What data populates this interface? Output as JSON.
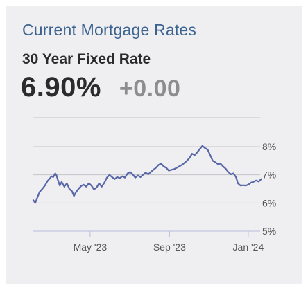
{
  "header": {
    "title": "Current Mortgage Rates",
    "subtitle": "30 Year Fixed Rate",
    "rate": "6.90%",
    "change": "+0.00"
  },
  "colors": {
    "title": "#3c6390",
    "line": "#5666a6",
    "grid": "#c4c4c8",
    "axis": "#b9bce0",
    "card_background": "#efeff1"
  },
  "chart_data": {
    "type": "line",
    "title": "",
    "xlabel": "",
    "ylabel": "",
    "ylim": [
      5,
      8
    ],
    "y_ticks": [
      8,
      7,
      6,
      5
    ],
    "y_tick_labels": [
      "8%",
      "7%",
      "6%",
      "5%"
    ],
    "y_axis_position": "right",
    "grid": true,
    "x_ticks": [
      "2023-05-01",
      "2023-09-01",
      "2024-01-01"
    ],
    "x_tick_labels": [
      "May '23",
      "Sep '23",
      "Jan '24"
    ],
    "series": [
      {
        "name": "",
        "points": [
          [
            "2023-02-02",
            6.1
          ],
          [
            "2023-02-05",
            6.0
          ],
          [
            "2023-02-08",
            6.18
          ],
          [
            "2023-02-12",
            6.4
          ],
          [
            "2023-02-16",
            6.5
          ],
          [
            "2023-02-20",
            6.62
          ],
          [
            "2023-02-24",
            6.78
          ],
          [
            "2023-02-28",
            6.88
          ],
          [
            "2023-03-02",
            6.95
          ],
          [
            "2023-03-05",
            6.92
          ],
          [
            "2023-03-08",
            7.05
          ],
          [
            "2023-03-10",
            6.98
          ],
          [
            "2023-03-12",
            6.82
          ],
          [
            "2023-03-15",
            6.62
          ],
          [
            "2023-03-18",
            6.75
          ],
          [
            "2023-03-22",
            6.58
          ],
          [
            "2023-03-26",
            6.7
          ],
          [
            "2023-03-30",
            6.5
          ],
          [
            "2023-04-03",
            6.42
          ],
          [
            "2023-04-06",
            6.25
          ],
          [
            "2023-04-09",
            6.38
          ],
          [
            "2023-04-13",
            6.5
          ],
          [
            "2023-04-17",
            6.6
          ],
          [
            "2023-04-21",
            6.65
          ],
          [
            "2023-04-25",
            6.58
          ],
          [
            "2023-04-29",
            6.7
          ],
          [
            "2023-05-03",
            6.62
          ],
          [
            "2023-05-07",
            6.48
          ],
          [
            "2023-05-11",
            6.55
          ],
          [
            "2023-05-15",
            6.7
          ],
          [
            "2023-05-19",
            6.58
          ],
          [
            "2023-05-23",
            6.72
          ],
          [
            "2023-05-27",
            6.9
          ],
          [
            "2023-05-31",
            7.0
          ],
          [
            "2023-06-04",
            6.92
          ],
          [
            "2023-06-08",
            6.85
          ],
          [
            "2023-06-12",
            6.92
          ],
          [
            "2023-06-16",
            6.88
          ],
          [
            "2023-06-20",
            6.95
          ],
          [
            "2023-06-24",
            6.9
          ],
          [
            "2023-06-28",
            7.05
          ],
          [
            "2023-07-02",
            7.1
          ],
          [
            "2023-07-06",
            7.02
          ],
          [
            "2023-07-10",
            6.9
          ],
          [
            "2023-07-14",
            6.98
          ],
          [
            "2023-07-18",
            6.92
          ],
          [
            "2023-07-22",
            7.0
          ],
          [
            "2023-07-26",
            7.08
          ],
          [
            "2023-07-30",
            7.02
          ],
          [
            "2023-08-03",
            7.1
          ],
          [
            "2023-08-07",
            7.18
          ],
          [
            "2023-08-11",
            7.25
          ],
          [
            "2023-08-15",
            7.35
          ],
          [
            "2023-08-19",
            7.4
          ],
          [
            "2023-08-23",
            7.3
          ],
          [
            "2023-08-27",
            7.25
          ],
          [
            "2023-08-31",
            7.15
          ],
          [
            "2023-09-04",
            7.18
          ],
          [
            "2023-09-08",
            7.2
          ],
          [
            "2023-09-12",
            7.25
          ],
          [
            "2023-09-16",
            7.3
          ],
          [
            "2023-09-20",
            7.35
          ],
          [
            "2023-09-24",
            7.42
          ],
          [
            "2023-09-28",
            7.5
          ],
          [
            "2023-10-02",
            7.6
          ],
          [
            "2023-10-06",
            7.75
          ],
          [
            "2023-10-10",
            7.7
          ],
          [
            "2023-10-14",
            7.8
          ],
          [
            "2023-10-18",
            7.92
          ],
          [
            "2023-10-22",
            8.03
          ],
          [
            "2023-10-26",
            7.95
          ],
          [
            "2023-10-30",
            7.9
          ],
          [
            "2023-11-03",
            7.7
          ],
          [
            "2023-11-07",
            7.5
          ],
          [
            "2023-11-11",
            7.45
          ],
          [
            "2023-11-15",
            7.38
          ],
          [
            "2023-11-19",
            7.4
          ],
          [
            "2023-11-23",
            7.3
          ],
          [
            "2023-11-27",
            7.22
          ],
          [
            "2023-12-01",
            7.1
          ],
          [
            "2023-12-05",
            7.02
          ],
          [
            "2023-12-09",
            7.05
          ],
          [
            "2023-12-13",
            6.92
          ],
          [
            "2023-12-16",
            6.7
          ],
          [
            "2023-12-20",
            6.62
          ],
          [
            "2023-12-24",
            6.63
          ],
          [
            "2023-12-28",
            6.62
          ],
          [
            "2024-01-01",
            6.65
          ],
          [
            "2024-01-05",
            6.72
          ],
          [
            "2024-01-09",
            6.75
          ],
          [
            "2024-01-13",
            6.8
          ],
          [
            "2024-01-17",
            6.76
          ],
          [
            "2024-01-21",
            6.85
          ],
          [
            "2024-01-25",
            6.9
          ],
          [
            "2024-01-29",
            6.92
          ],
          [
            "2024-02-01",
            6.9
          ]
        ]
      }
    ]
  }
}
